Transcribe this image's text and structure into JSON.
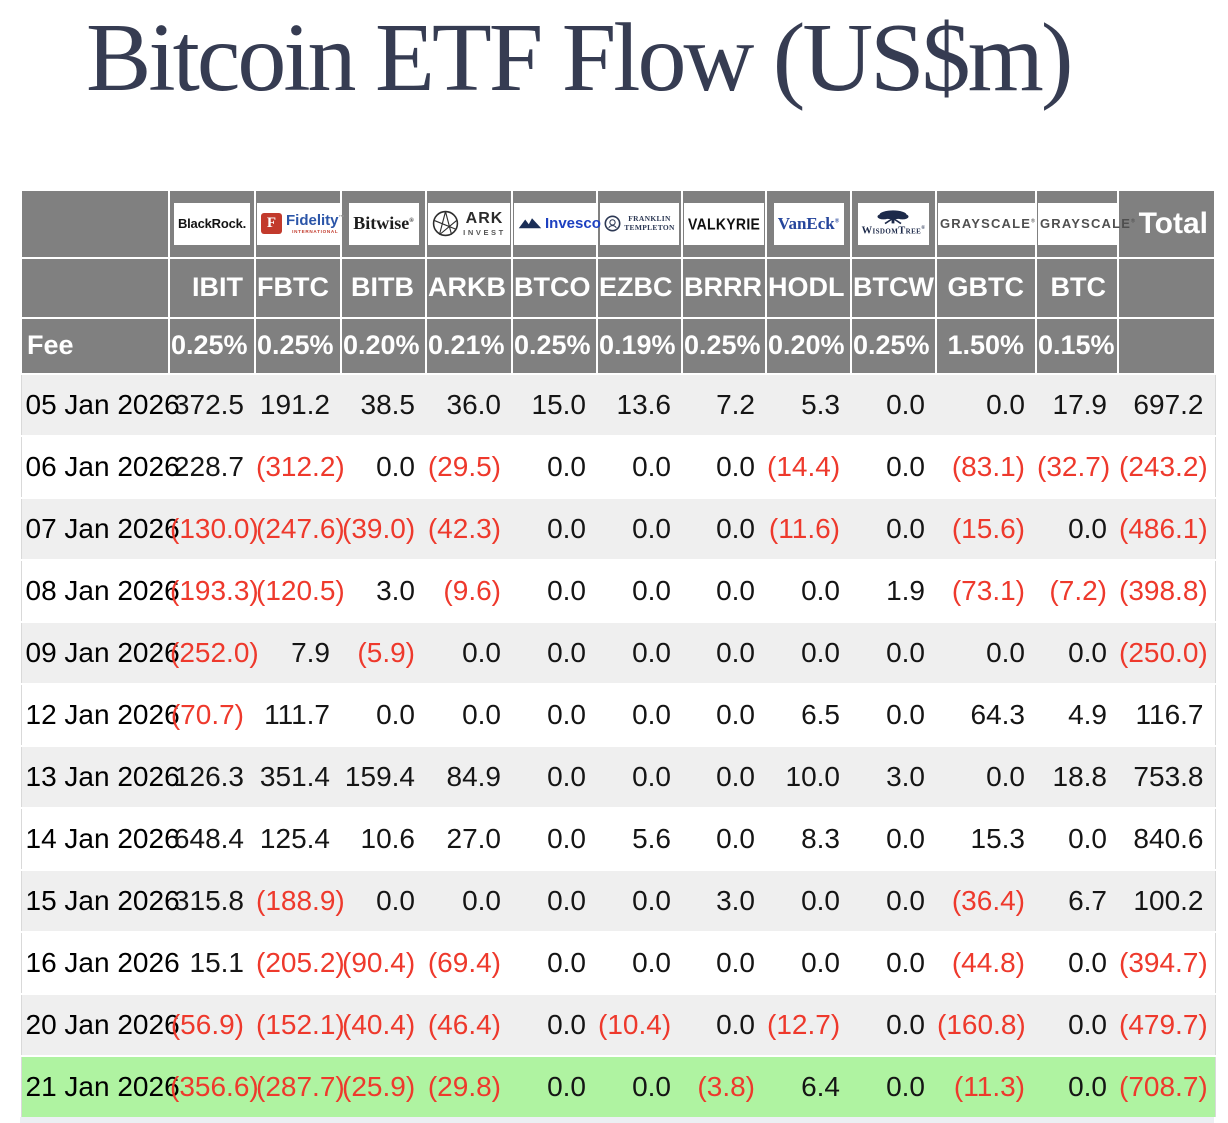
{
  "chart_data": {
    "type": "table",
    "title": "Bitcoin ETF Flow (US$m)",
    "units": "US$m",
    "row_label_header": "Fee",
    "total_label": "Total",
    "columns": [
      {
        "issuer": "BlackRock",
        "logo": "blackrock",
        "ticker": "IBIT",
        "fee": "0.25%"
      },
      {
        "issuer": "Fidelity",
        "logo": "fidelity",
        "ticker": "FBTC",
        "fee": "0.25%"
      },
      {
        "issuer": "Bitwise",
        "logo": "bitwise",
        "ticker": "BITB",
        "fee": "0.20%"
      },
      {
        "issuer": "ARK Invest",
        "logo": "ark",
        "ticker": "ARKB",
        "fee": "0.21%"
      },
      {
        "issuer": "Invesco",
        "logo": "invesco",
        "ticker": "BTCO",
        "fee": "0.25%"
      },
      {
        "issuer": "Franklin Templeton",
        "logo": "franklin",
        "ticker": "EZBC",
        "fee": "0.19%"
      },
      {
        "issuer": "Valkyrie",
        "logo": "valkyrie",
        "ticker": "BRRR",
        "fee": "0.25%"
      },
      {
        "issuer": "VanEck",
        "logo": "vaneck",
        "ticker": "HODL",
        "fee": "0.20%"
      },
      {
        "issuer": "WisdomTree",
        "logo": "wisdomtree",
        "ticker": "BTCW",
        "fee": "0.25%"
      },
      {
        "issuer": "Grayscale",
        "logo": "grayscale",
        "ticker": "GBTC",
        "fee": "1.50%"
      },
      {
        "issuer": "Grayscale",
        "logo": "grayscale",
        "ticker": "BTC",
        "fee": "0.15%"
      }
    ],
    "rows": [
      {
        "date": "05 Jan 2026",
        "values": [
          372.5,
          191.2,
          38.5,
          36.0,
          15.0,
          13.6,
          7.2,
          5.3,
          0.0,
          0.0,
          17.9
        ],
        "total": 697.2,
        "highlight": false
      },
      {
        "date": "06 Jan 2026",
        "values": [
          228.7,
          -312.2,
          0.0,
          -29.5,
          0.0,
          0.0,
          0.0,
          -14.4,
          0.0,
          -83.1,
          -32.7
        ],
        "total": -243.2,
        "highlight": false
      },
      {
        "date": "07 Jan 2026",
        "values": [
          -130.0,
          -247.6,
          -39.0,
          -42.3,
          0.0,
          0.0,
          0.0,
          -11.6,
          0.0,
          -15.6,
          0.0
        ],
        "total": -486.1,
        "highlight": false
      },
      {
        "date": "08 Jan 2026",
        "values": [
          -193.3,
          -120.5,
          3.0,
          -9.6,
          0.0,
          0.0,
          0.0,
          0.0,
          1.9,
          -73.1,
          -7.2
        ],
        "total": -398.8,
        "highlight": false
      },
      {
        "date": "09 Jan 2026",
        "values": [
          -252.0,
          7.9,
          -5.9,
          0.0,
          0.0,
          0.0,
          0.0,
          0.0,
          0.0,
          0.0,
          0.0
        ],
        "total": -250.0,
        "highlight": false
      },
      {
        "date": "12 Jan 2026",
        "values": [
          -70.7,
          111.7,
          0.0,
          0.0,
          0.0,
          0.0,
          0.0,
          6.5,
          0.0,
          64.3,
          4.9
        ],
        "total": 116.7,
        "highlight": false
      },
      {
        "date": "13 Jan 2026",
        "values": [
          126.3,
          351.4,
          159.4,
          84.9,
          0.0,
          0.0,
          0.0,
          10.0,
          3.0,
          0.0,
          18.8
        ],
        "total": 753.8,
        "highlight": false
      },
      {
        "date": "14 Jan 2026",
        "values": [
          648.4,
          125.4,
          10.6,
          27.0,
          0.0,
          5.6,
          0.0,
          8.3,
          0.0,
          15.3,
          0.0
        ],
        "total": 840.6,
        "highlight": false
      },
      {
        "date": "15 Jan 2026",
        "values": [
          315.8,
          -188.9,
          0.0,
          0.0,
          0.0,
          0.0,
          3.0,
          0.0,
          0.0,
          -36.4,
          6.7
        ],
        "total": 100.2,
        "highlight": false
      },
      {
        "date": "16 Jan 2026",
        "values": [
          15.1,
          -205.2,
          -90.4,
          -69.4,
          0.0,
          0.0,
          0.0,
          0.0,
          0.0,
          -44.8,
          0.0
        ],
        "total": -394.7,
        "highlight": false
      },
      {
        "date": "20 Jan 2026",
        "values": [
          -56.9,
          -152.1,
          -40.4,
          -46.4,
          0.0,
          -10.4,
          0.0,
          -12.7,
          0.0,
          -160.8,
          0.0
        ],
        "total": -479.7,
        "highlight": false
      },
      {
        "date": "21 Jan 2026",
        "values": [
          -356.6,
          -287.7,
          -25.9,
          -29.8,
          0.0,
          0.0,
          -3.8,
          6.4,
          0.0,
          -11.3,
          0.0
        ],
        "total": -708.7,
        "highlight": true
      }
    ],
    "negative_format": "parentheses",
    "layout_hints": {
      "grid": "white gridlines in header only",
      "zebra_rows": true,
      "highlight_row": "21 Jan 2026"
    }
  },
  "logos": {
    "blackrock": {
      "label": "BlackRock."
    },
    "fidelity": {
      "icon": "F",
      "label": "Fidelity",
      "tm": "™",
      "sub": "INTERNATIONAL"
    },
    "bitwise": {
      "label": "Bitwise",
      "reg": "®"
    },
    "ark": {
      "label": "ARK",
      "sub": "INVEST"
    },
    "invesco": {
      "label": "Invesco"
    },
    "franklin": {
      "line1": "FRANKLIN",
      "line2": "TEMPLETON"
    },
    "valkyrie": {
      "label": "VALKYRIE"
    },
    "vaneck": {
      "label": "VanEck",
      "reg": "®"
    },
    "wisdomtree": {
      "label": "WisdomTree",
      "reg": "®"
    },
    "grayscale": {
      "label": "GRAYSCALE",
      "reg": "®"
    }
  },
  "styles": {
    "header_bg": "#808080",
    "row_alt_bg": "#efefef",
    "highlight_bg": "#aff3a1",
    "negative_color": "#ee392c",
    "title_color": "#363c52"
  }
}
